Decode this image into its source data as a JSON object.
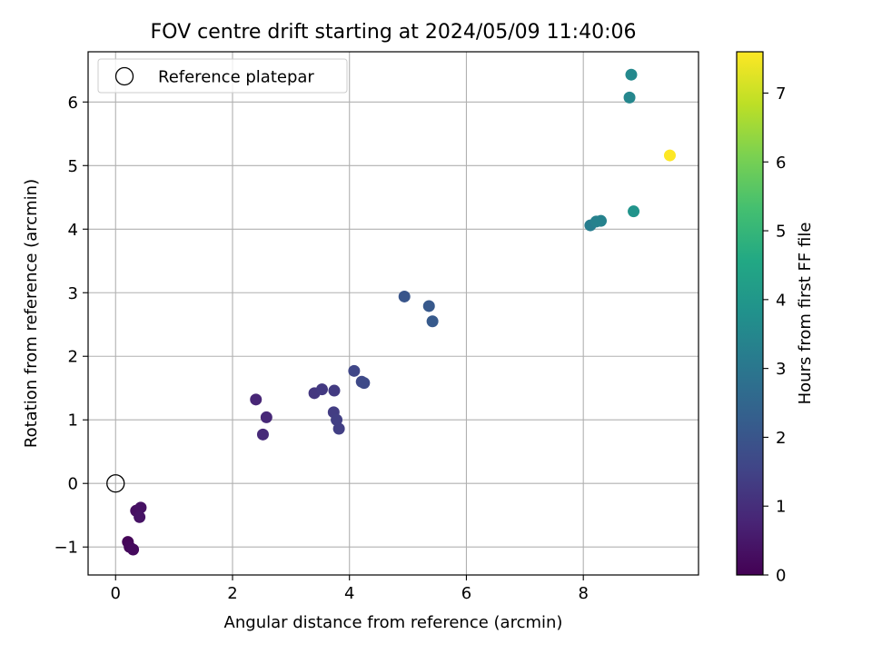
{
  "chart_data": {
    "type": "scatter",
    "title": "FOV centre drift starting at 2024/05/09 11:40:06",
    "xlabel": "Angular distance from reference (arcmin)",
    "ylabel": "Rotation from reference (arcmin)",
    "xlim": [
      -0.47,
      9.97
    ],
    "ylim": [
      -1.44,
      6.79
    ],
    "xticks": [
      0,
      2,
      4,
      6,
      8
    ],
    "yticks": [
      -1,
      0,
      1,
      2,
      3,
      4,
      5,
      6
    ],
    "xtick_labels": [
      "0",
      "2",
      "4",
      "6",
      "8"
    ],
    "ytick_labels": [
      "−1",
      "0",
      "1",
      "2",
      "3",
      "4",
      "5",
      "6"
    ],
    "grid": true,
    "legend_position": "top-left",
    "reference_point": {
      "name": "Reference platepar",
      "x": 0,
      "y": 0
    },
    "colorbar": {
      "label": "Hours from first FF file",
      "colormap": "viridis",
      "range": [
        0,
        7.6
      ],
      "ticks": [
        0,
        1,
        2,
        3,
        4,
        5,
        6,
        7
      ],
      "tick_labels": [
        "0",
        "1",
        "2",
        "3",
        "4",
        "5",
        "6",
        "7"
      ]
    },
    "points": [
      {
        "x": 0.21,
        "y": -0.92,
        "hours": 0.1
      },
      {
        "x": 0.24,
        "y": -1.0,
        "hours": 0.15
      },
      {
        "x": 0.3,
        "y": -1.04,
        "hours": 0.2
      },
      {
        "x": 0.35,
        "y": -0.43,
        "hours": 0.3
      },
      {
        "x": 0.43,
        "y": -0.38,
        "hours": 0.35
      },
      {
        "x": 0.41,
        "y": -0.53,
        "hours": 0.4
      },
      {
        "x": 2.4,
        "y": 1.32,
        "hours": 0.8
      },
      {
        "x": 2.58,
        "y": 1.04,
        "hours": 0.85
      },
      {
        "x": 2.52,
        "y": 0.77,
        "hours": 0.9
      },
      {
        "x": 3.4,
        "y": 1.42,
        "hours": 1.2
      },
      {
        "x": 3.53,
        "y": 1.48,
        "hours": 1.25
      },
      {
        "x": 3.74,
        "y": 1.46,
        "hours": 1.3
      },
      {
        "x": 3.73,
        "y": 1.12,
        "hours": 1.35
      },
      {
        "x": 3.78,
        "y": 1.0,
        "hours": 1.4
      },
      {
        "x": 3.82,
        "y": 0.86,
        "hours": 1.4
      },
      {
        "x": 4.08,
        "y": 1.77,
        "hours": 1.6
      },
      {
        "x": 4.21,
        "y": 1.6,
        "hours": 1.65
      },
      {
        "x": 4.25,
        "y": 1.58,
        "hours": 1.7
      },
      {
        "x": 4.94,
        "y": 2.94,
        "hours": 2.0
      },
      {
        "x": 5.36,
        "y": 2.79,
        "hours": 2.1
      },
      {
        "x": 5.42,
        "y": 2.55,
        "hours": 2.15
      },
      {
        "x": 8.12,
        "y": 4.06,
        "hours": 3.2
      },
      {
        "x": 8.22,
        "y": 4.12,
        "hours": 3.3
      },
      {
        "x": 8.3,
        "y": 4.13,
        "hours": 3.35
      },
      {
        "x": 8.86,
        "y": 4.28,
        "hours": 3.9
      },
      {
        "x": 8.79,
        "y": 6.07,
        "hours": 3.5
      },
      {
        "x": 8.82,
        "y": 6.43,
        "hours": 3.55
      },
      {
        "x": 9.48,
        "y": 5.16,
        "hours": 7.6
      }
    ]
  }
}
